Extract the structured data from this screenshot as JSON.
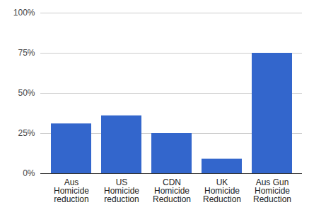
{
  "chart_data": {
    "type": "bar",
    "categories": [
      "Aus Homicide reduction",
      "US Homicide reduction",
      "CDN Homicide Reduction",
      "UK Homicide Reduction",
      "Aus Gun Homicide Reduction"
    ],
    "values": [
      31,
      36,
      25,
      9,
      75
    ],
    "color": "#3366cc",
    "ylim": [
      0,
      100
    ],
    "yticks": [
      {
        "value": 0,
        "label": "0%"
      },
      {
        "value": 25,
        "label": "25%"
      },
      {
        "value": 50,
        "label": "50%"
      },
      {
        "value": 75,
        "label": "75%"
      },
      {
        "value": 100,
        "label": "100%"
      }
    ],
    "grid": true
  }
}
